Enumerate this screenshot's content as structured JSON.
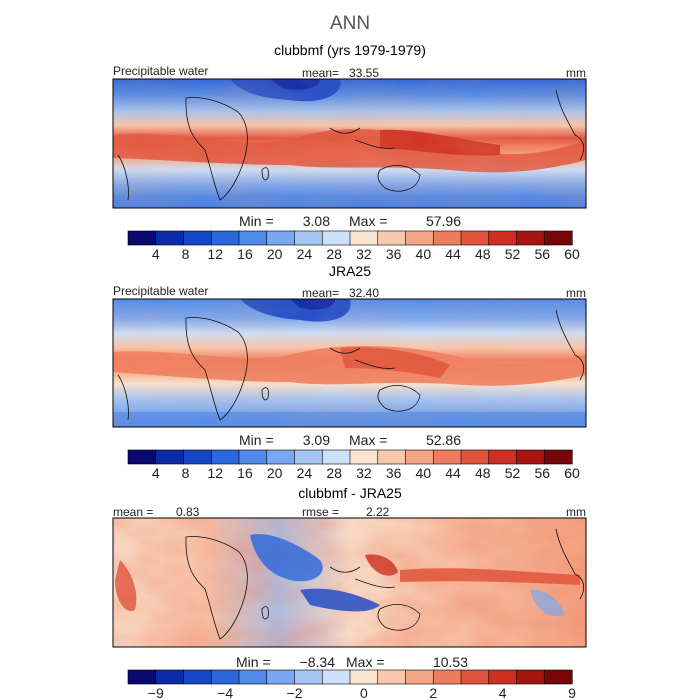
{
  "figure": {
    "title": "ANN",
    "panels": [
      {
        "title": "clubbmf (yrs 1979-1979)",
        "field_label": "Precipitable water",
        "stat_left_label": "mean=",
        "stat_left_value": "33.55",
        "units": "mm",
        "min_label": "Min =",
        "min_value": "3.08",
        "max_label": "Max =",
        "max_value": "57.96",
        "colorbar_ticks": [
          "4",
          "8",
          "12",
          "16",
          "20",
          "24",
          "28",
          "32",
          "36",
          "40",
          "44",
          "48",
          "52",
          "56",
          "60"
        ],
        "colorbar_colors": [
          "#08086e",
          "#0b2aa8",
          "#1646c8",
          "#2a66dc",
          "#4f8ae8",
          "#7aa8f0",
          "#a4c5f4",
          "#cde0f8",
          "#f9e4d2",
          "#f8c7ac",
          "#f4a585",
          "#ee7d5e",
          "#e0533c",
          "#cd2f22",
          "#a8140f",
          "#780606"
        ]
      },
      {
        "title": "JRA25",
        "field_label": "Precipitable water",
        "stat_left_label": "mean=",
        "stat_left_value": "32.40",
        "units": "mm",
        "min_label": "Min =",
        "min_value": "3.09",
        "max_label": "Max =",
        "max_value": "52.86",
        "colorbar_ticks": [
          "4",
          "8",
          "12",
          "16",
          "20",
          "24",
          "28",
          "32",
          "36",
          "40",
          "44",
          "48",
          "52",
          "56",
          "60"
        ],
        "colorbar_colors": [
          "#08086e",
          "#0b2aa8",
          "#1646c8",
          "#2a66dc",
          "#4f8ae8",
          "#7aa8f0",
          "#a4c5f4",
          "#cde0f8",
          "#f9e4d2",
          "#f8c7ac",
          "#f4a585",
          "#ee7d5e",
          "#e0533c",
          "#cd2f22",
          "#a8140f",
          "#780606"
        ]
      },
      {
        "title": "clubbmf - JRA25",
        "field_label": "",
        "stat_left_label": "mean =",
        "stat_left_value": "0.83",
        "stat_mid_label": "rmse =",
        "stat_mid_value": "2.22",
        "units": "mm",
        "min_label": "Min =",
        "min_value": "−8.34",
        "max_label": "Max =",
        "max_value": "10.53",
        "colorbar_ticks": [
          "−9",
          "−4",
          "−2",
          "0",
          "2",
          "4",
          "9"
        ],
        "colorbar_colors": [
          "#08086e",
          "#0b2aa8",
          "#1646c8",
          "#2a66dc",
          "#4f8ae8",
          "#7aa8f0",
          "#a4c5f4",
          "#cde0f8",
          "#f9e4d2",
          "#f8c7ac",
          "#f4a585",
          "#ee7d5e",
          "#e0533c",
          "#cd2f22",
          "#a8140f",
          "#780606"
        ]
      }
    ]
  },
  "chart_data": [
    {
      "type": "heatmap",
      "title": "clubbmf (yrs 1979-1979)",
      "variable": "Precipitable water",
      "units": "mm",
      "mean": 33.55,
      "min": 3.08,
      "max": 57.96,
      "contour_levels": [
        4,
        8,
        12,
        16,
        20,
        24,
        28,
        32,
        36,
        40,
        44,
        48,
        52,
        56,
        60
      ],
      "xlim": [
        0,
        360
      ],
      "ylim": [
        -60,
        60
      ]
    },
    {
      "type": "heatmap",
      "title": "JRA25",
      "variable": "Precipitable water",
      "units": "mm",
      "mean": 32.4,
      "min": 3.09,
      "max": 52.86,
      "contour_levels": [
        4,
        8,
        12,
        16,
        20,
        24,
        28,
        32,
        36,
        40,
        44,
        48,
        52,
        56,
        60
      ],
      "xlim": [
        0,
        360
      ],
      "ylim": [
        -60,
        60
      ]
    },
    {
      "type": "heatmap",
      "title": "clubbmf - JRA25",
      "units": "mm",
      "mean": 0.83,
      "rmse": 2.22,
      "min": -8.34,
      "max": 10.53,
      "contour_levels": [
        -9,
        -4,
        -2,
        0,
        2,
        4,
        9
      ],
      "xlim": [
        0,
        360
      ],
      "ylim": [
        -60,
        60
      ]
    }
  ]
}
